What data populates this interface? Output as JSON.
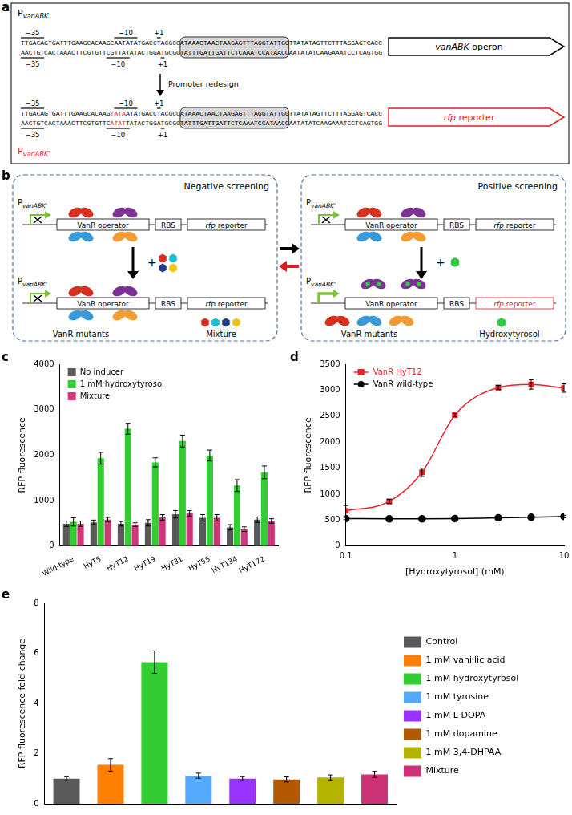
{
  "diagram": {
    "a": {
      "panel_label": "a",
      "marks": {
        "minus35": "−35",
        "minus10": "−10",
        "plus1": "+1"
      },
      "arrow_label": "Promoter redesign",
      "constructs": [
        {
          "promoter": "P",
          "promoter_sub": "vanABK",
          "color": "#000000",
          "strand_top": [
            {
              "text": "TTGACAGTGATTTGAAGCACAAGCAATATATGACCTACGCCATAAACTAACTAAGAGTTTAGGTATTGGTTATATAGTTCTTTAGGAGTCACC",
              "highlight": false
            }
          ],
          "strand_bottom": [
            {
              "text": "AACTGTCACTAAACTTCGTGTTCGTTATATACTGGATGCGGTATTTGATTGATTCTCAAATCCATAACCAATATATCAAGAAATCCTCAGTGG",
              "highlight": false
            }
          ],
          "gene": "vanABK operon"
        },
        {
          "promoter": "P",
          "promoter_sub": "vanABK'",
          "color": "#e31a1c",
          "strand_top": [
            {
              "text": "TTGACAGTGATTTGAAGCACAAG",
              "highlight": false
            },
            {
              "text": "TATA",
              "highlight": true
            },
            {
              "text": "ATATGACCTACGCCATAAACTAACTAAGAGTTTAGGTATTGGTTATATAGTTCTTTAGGAGTCACC",
              "highlight": false
            }
          ],
          "strand_bottom": [
            {
              "text": "AACTGTCACTAAACTTCGTGTTC",
              "highlight": false
            },
            {
              "text": "ATAT",
              "highlight": true
            },
            {
              "text": "TATACTGGATGCGGTATTTGATTGATTCTCAAATCCATAACCAATATATCAAGAAATCCTCAGTGG",
              "highlight": false
            }
          ],
          "gene": "rfp reporter"
        }
      ]
    },
    "b": {
      "panel_label": "b",
      "promoter": "P",
      "promoter_sub": "vanABK'",
      "operator": "VanR operator",
      "rbs": "RBS",
      "reporter": "rfp reporter",
      "negative": {
        "title": "Negative screening",
        "plus": "+",
        "mutants": "VanR mutants",
        "ligand": "Mixture"
      },
      "positive": {
        "title": "Positive screening",
        "plus": "+",
        "mutants": "VanR mutants",
        "ligand": "Hydroxytyrosol"
      }
    }
  },
  "chart_data": [
    {
      "panel_label": "c",
      "type": "bar",
      "y_label": "RFP fluorescence",
      "categories": [
        "Wild-type",
        "HyT5",
        "HyT12",
        "HyT19",
        "HyT31",
        "HyT55",
        "HyT134",
        "HyT172"
      ],
      "series": [
        {
          "name": "No inducer",
          "color": "#595959",
          "values": [
            490,
            520,
            490,
            510,
            700,
            620,
            410,
            580
          ],
          "errors": [
            60,
            50,
            50,
            70,
            80,
            70,
            60,
            60
          ]
        },
        {
          "name": "1 mM hydroxytyrosol",
          "color": "#33cc33",
          "values": [
            530,
            1930,
            2580,
            1840,
            2310,
            1990,
            1330,
            1620
          ],
          "errors": [
            90,
            130,
            120,
            100,
            130,
            120,
            130,
            140
          ]
        },
        {
          "name": "Mixture",
          "color": "#d1357a",
          "values": [
            490,
            580,
            470,
            630,
            720,
            620,
            370,
            550
          ],
          "errors": [
            60,
            50,
            40,
            60,
            60,
            70,
            50,
            50
          ]
        }
      ],
      "ylim": [
        0,
        4000
      ],
      "yticks": [
        0,
        1000,
        2000,
        3000,
        4000
      ],
      "grid": false,
      "legend": "upper left"
    },
    {
      "panel_label": "d",
      "type": "line",
      "x_label": "[Hydroxytyrosol] (mM)",
      "y_label": "RFP fluorescence",
      "log": "x",
      "xlim": [
        0.1,
        10
      ],
      "xticks": [
        0.1,
        1,
        10
      ],
      "ylim": [
        0,
        3500
      ],
      "yticks": [
        0,
        500,
        1000,
        1500,
        2000,
        2500,
        3000,
        3500
      ],
      "series": [
        {
          "name": "VanR HyT12",
          "color": "#e8242b",
          "marker": "square",
          "line_style": "solid",
          "x": [
            0.1,
            0.25,
            0.5,
            1,
            2.5,
            5,
            10
          ],
          "values": [
            680,
            860,
            1420,
            2520,
            3050,
            3110,
            3040
          ],
          "errors": [
            100,
            40,
            80,
            30,
            40,
            90,
            80
          ]
        },
        {
          "name": "VanR wild-type",
          "color": "#000000",
          "marker": "circle",
          "line_style": "solid",
          "x": [
            0.1,
            0.25,
            0.5,
            1,
            2.5,
            5,
            10
          ],
          "values": [
            530,
            525,
            525,
            530,
            545,
            555,
            570
          ],
          "errors": [
            20,
            15,
            15,
            20,
            20,
            20,
            25
          ]
        }
      ],
      "grid": false,
      "legend": "upper left"
    },
    {
      "panel_label": "e",
      "type": "bar",
      "y_label": "RFP fluorescence fold change",
      "categories": [
        "Control",
        "1 mM vanillic acid",
        "1 mM hydroxytyrosol",
        "1 mM tyrosine",
        "1 mM L-DOPA",
        "1 mM dopamine",
        "1 mM 3,4-DHPAA",
        "Mixture"
      ],
      "values": [
        1.0,
        1.55,
        5.65,
        1.12,
        1.0,
        0.97,
        1.05,
        1.17
      ],
      "errors": [
        0.08,
        0.25,
        0.45,
        0.1,
        0.08,
        0.1,
        0.1,
        0.12
      ],
      "colors": [
        "#595959",
        "#ff8000",
        "#33cc33",
        "#55aaff",
        "#9933ff",
        "#b35900",
        "#b3b300",
        "#cc3377"
      ],
      "ylim": [
        0,
        8
      ],
      "yticks": [
        0,
        2,
        4,
        6,
        8
      ],
      "grid": false,
      "legend": "right",
      "tick_labels": "y"
    }
  ]
}
